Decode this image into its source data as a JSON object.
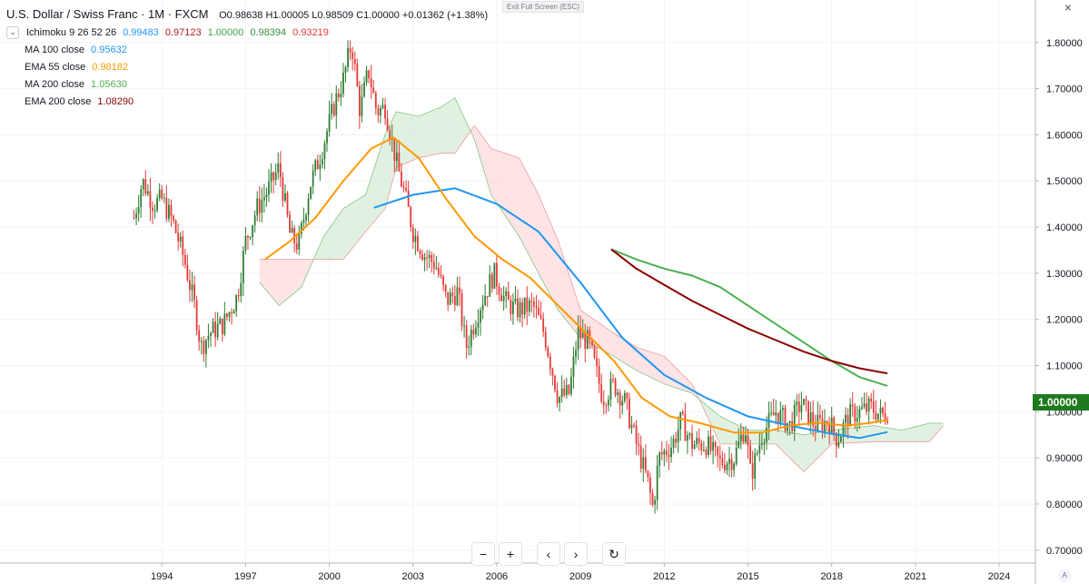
{
  "header": {
    "title": "U.S. Dollar / Swiss Franc · 1M · FXCM",
    "ohlc": "O0.98638  H1.00005  L0.98509  C1.00000  +0.01362 (+1.38%)",
    "exit_fullscreen": "Exit Full Screen (ESC)"
  },
  "indicators": {
    "ichimoku": {
      "name": "Ichimoku 9 26 52 26",
      "v1": "0.99483",
      "v2": "0.97123",
      "v3": "1.00000",
      "v4": "0.98394",
      "v5": "0.93219"
    },
    "ma100": {
      "name": "MA 100 close",
      "value": "0.95632"
    },
    "ema55": {
      "name": "EMA 55 close",
      "value": "0.98182"
    },
    "ma200": {
      "name": "MA 200 close",
      "value": "1.05630"
    },
    "ema200": {
      "name": "EMA 200 close",
      "value": "1.08290"
    }
  },
  "colors": {
    "up": "#26a69a",
    "up_candle": "#2e7d32",
    "down": "#e53935",
    "ma100": "#2196f3",
    "ema55": "#ff9800",
    "ma200": "#4caf50",
    "ema200": "#8b0000",
    "ichimoku_blue": "#2196f3",
    "ichimoku_red": "#b71c1c",
    "ichimoku_green": "#43a047",
    "ichimoku_v4": "#388e3c",
    "ichimoku_v5": "#e53935",
    "cloud_green": "#c8e6c9",
    "cloud_red": "#ffcdd2",
    "price_tag": "#1f7a1f",
    "grid": "#f0f3fa"
  },
  "price_tag": "1.00000",
  "nav": {
    "zoom_out": "−",
    "zoom_in": "+",
    "back": "‹",
    "forward": "›",
    "reset": "↻"
  },
  "chart_data": {
    "type": "candlestick",
    "x_ticks": [
      "1994",
      "1997",
      "2000",
      "2003",
      "2006",
      "2009",
      "2012",
      "2015",
      "2018",
      "2021",
      "2024"
    ],
    "x_tick_years": [
      1994,
      1997,
      2000,
      2003,
      2006,
      2009,
      2012,
      2015,
      2018,
      2021,
      2024
    ],
    "y_ticks": [
      "1.80000",
      "1.70000",
      "1.60000",
      "1.50000",
      "1.40000",
      "1.30000",
      "1.20000",
      "1.10000",
      "1.00000",
      "0.90000",
      "0.80000",
      "0.70000"
    ],
    "y_tick_values": [
      1.8,
      1.7,
      1.6,
      1.5,
      1.4,
      1.3,
      1.2,
      1.1,
      1.0,
      0.9,
      0.8,
      0.7
    ],
    "xlim": [
      1988.2,
      2025.3
    ],
    "ylim": [
      0.672,
      1.892
    ],
    "price_path": [
      [
        1993.0,
        1.42
      ],
      [
        1993.3,
        1.5
      ],
      [
        1993.7,
        1.45
      ],
      [
        1994.0,
        1.46
      ],
      [
        1994.4,
        1.41
      ],
      [
        1994.8,
        1.33
      ],
      [
        1995.2,
        1.22
      ],
      [
        1995.4,
        1.14
      ],
      [
        1995.7,
        1.17
      ],
      [
        1996.2,
        1.19
      ],
      [
        1996.7,
        1.25
      ],
      [
        1997.0,
        1.37
      ],
      [
        1997.4,
        1.44
      ],
      [
        1997.8,
        1.48
      ],
      [
        1998.2,
        1.53
      ],
      [
        1998.6,
        1.38
      ],
      [
        1998.9,
        1.36
      ],
      [
        1999.3,
        1.49
      ],
      [
        1999.7,
        1.56
      ],
      [
        2000.2,
        1.67
      ],
      [
        2000.5,
        1.72
      ],
      [
        2000.8,
        1.8
      ],
      [
        2001.1,
        1.65
      ],
      [
        2001.4,
        1.74
      ],
      [
        2001.7,
        1.65
      ],
      [
        2002.0,
        1.66
      ],
      [
        2002.4,
        1.54
      ],
      [
        2002.7,
        1.47
      ],
      [
        2003.0,
        1.39
      ],
      [
        2003.4,
        1.34
      ],
      [
        2003.8,
        1.32
      ],
      [
        2004.2,
        1.24
      ],
      [
        2004.6,
        1.26
      ],
      [
        2004.9,
        1.14
      ],
      [
        2005.4,
        1.23
      ],
      [
        2005.9,
        1.3
      ],
      [
        2006.3,
        1.24
      ],
      [
        2006.7,
        1.22
      ],
      [
        2007.3,
        1.23
      ],
      [
        2007.7,
        1.17
      ],
      [
        2008.2,
        1.03
      ],
      [
        2008.6,
        1.04
      ],
      [
        2008.9,
        1.17
      ],
      [
        2009.3,
        1.15
      ],
      [
        2009.8,
        1.03
      ],
      [
        2010.2,
        1.06
      ],
      [
        2010.6,
        1.02
      ],
      [
        2011.0,
        0.93
      ],
      [
        2011.4,
        0.85
      ],
      [
        2011.6,
        0.79
      ],
      [
        2011.8,
        0.9
      ],
      [
        2012.3,
        0.93
      ],
      [
        2012.6,
        0.98
      ],
      [
        2013.0,
        0.93
      ],
      [
        2013.5,
        0.93
      ],
      [
        2014.0,
        0.89
      ],
      [
        2014.5,
        0.9
      ],
      [
        2014.9,
        0.97
      ],
      [
        2015.1,
        0.86
      ],
      [
        2015.5,
        0.95
      ],
      [
        2016.0,
        1.0
      ],
      [
        2016.5,
        0.97
      ],
      [
        2016.9,
        1.02
      ],
      [
        2017.4,
        0.97
      ],
      [
        2017.9,
        0.98
      ],
      [
        2018.2,
        0.94
      ],
      [
        2018.6,
        0.99
      ],
      [
        2019.0,
        1.0
      ],
      [
        2019.4,
        1.01
      ],
      [
        2019.8,
        0.99
      ],
      [
        2020.0,
        1.0
      ]
    ],
    "series": [
      {
        "name": "MA 100 close",
        "color": "#2196f3",
        "points": [
          [
            2001.6,
            1.442
          ],
          [
            2003.0,
            1.47
          ],
          [
            2004.5,
            1.484
          ],
          [
            2006.0,
            1.45
          ],
          [
            2007.5,
            1.39
          ],
          [
            2009.0,
            1.28
          ],
          [
            2010.5,
            1.16
          ],
          [
            2012.0,
            1.08
          ],
          [
            2013.5,
            1.03
          ],
          [
            2015.0,
            0.99
          ],
          [
            2016.5,
            0.97
          ],
          [
            2018.0,
            0.952
          ],
          [
            2019.0,
            0.943
          ],
          [
            2020.0,
            0.956
          ]
        ]
      },
      {
        "name": "EMA 55 close",
        "color": "#ff9800",
        "points": [
          [
            1997.7,
            1.33
          ],
          [
            1998.6,
            1.37
          ],
          [
            1999.5,
            1.42
          ],
          [
            2000.5,
            1.5
          ],
          [
            2001.5,
            1.57
          ],
          [
            2002.3,
            1.594
          ],
          [
            2003.2,
            1.55
          ],
          [
            2004.2,
            1.46
          ],
          [
            2005.2,
            1.38
          ],
          [
            2006.2,
            1.33
          ],
          [
            2007.2,
            1.29
          ],
          [
            2008.2,
            1.23
          ],
          [
            2009.2,
            1.17
          ],
          [
            2010.2,
            1.11
          ],
          [
            2011.2,
            1.03
          ],
          [
            2012.2,
            0.99
          ],
          [
            2013.3,
            0.975
          ],
          [
            2014.5,
            0.955
          ],
          [
            2015.5,
            0.955
          ],
          [
            2016.5,
            0.97
          ],
          [
            2017.5,
            0.976
          ],
          [
            2018.5,
            0.97
          ],
          [
            2019.3,
            0.975
          ],
          [
            2020.0,
            0.982
          ]
        ]
      },
      {
        "name": "MA 200 close",
        "color": "#4caf50",
        "points": [
          [
            2010.1,
            1.352
          ],
          [
            2011.0,
            1.33
          ],
          [
            2012.0,
            1.31
          ],
          [
            2013.0,
            1.295
          ],
          [
            2014.0,
            1.27
          ],
          [
            2015.0,
            1.23
          ],
          [
            2016.0,
            1.19
          ],
          [
            2017.0,
            1.15
          ],
          [
            2018.0,
            1.11
          ],
          [
            2019.0,
            1.075
          ],
          [
            2020.0,
            1.056
          ]
        ]
      },
      {
        "name": "EMA 200 close",
        "color": "#8b0000",
        "points": [
          [
            2010.1,
            1.352
          ],
          [
            2011.0,
            1.31
          ],
          [
            2012.0,
            1.275
          ],
          [
            2013.0,
            1.24
          ],
          [
            2014.0,
            1.21
          ],
          [
            2015.0,
            1.18
          ],
          [
            2016.0,
            1.155
          ],
          [
            2017.0,
            1.13
          ],
          [
            2018.0,
            1.11
          ],
          [
            2019.0,
            1.094
          ],
          [
            2020.0,
            1.083
          ]
        ]
      }
    ],
    "cloud": {
      "span_a": [
        [
          1997.5,
          1.28
        ],
        [
          1998.2,
          1.23
        ],
        [
          1999.0,
          1.27
        ],
        [
          1999.8,
          1.38
        ],
        [
          2000.5,
          1.44
        ],
        [
          2001.3,
          1.47
        ],
        [
          2002.0,
          1.6
        ],
        [
          2002.4,
          1.65
        ],
        [
          2003.2,
          1.64
        ],
        [
          2004.0,
          1.66
        ],
        [
          2004.5,
          1.68
        ],
        [
          2005.2,
          1.59
        ],
        [
          2005.8,
          1.47
        ],
        [
          2006.8,
          1.38
        ],
        [
          2007.5,
          1.3
        ],
        [
          2008.2,
          1.22
        ],
        [
          2009.0,
          1.16
        ],
        [
          2010.2,
          1.12
        ],
        [
          2011.0,
          1.09
        ],
        [
          2012.0,
          1.06
        ],
        [
          2013.0,
          1.04
        ],
        [
          2014.0,
          0.99
        ],
        [
          2015.0,
          0.96
        ],
        [
          2016.0,
          0.96
        ],
        [
          2017.0,
          0.95
        ],
        [
          2018.0,
          0.96
        ],
        [
          2019.5,
          0.97
        ],
        [
          2020.5,
          0.96
        ],
        [
          2021.5,
          0.975
        ],
        [
          2022.0,
          0.975
        ]
      ],
      "span_b": [
        [
          1997.5,
          1.33
        ],
        [
          1998.2,
          1.33
        ],
        [
          1999.0,
          1.33
        ],
        [
          1999.8,
          1.33
        ],
        [
          2000.5,
          1.33
        ],
        [
          2001.3,
          1.39
        ],
        [
          2002.0,
          1.44
        ],
        [
          2002.4,
          1.53
        ],
        [
          2003.2,
          1.55
        ],
        [
          2004.0,
          1.56
        ],
        [
          2004.5,
          1.56
        ],
        [
          2005.2,
          1.62
        ],
        [
          2005.8,
          1.57
        ],
        [
          2006.8,
          1.55
        ],
        [
          2007.5,
          1.47
        ],
        [
          2008.2,
          1.37
        ],
        [
          2009.0,
          1.22
        ],
        [
          2010.2,
          1.17
        ],
        [
          2011.0,
          1.14
        ],
        [
          2012.0,
          1.12
        ],
        [
          2013.0,
          1.06
        ],
        [
          2014.0,
          0.93
        ],
        [
          2015.0,
          0.93
        ],
        [
          2016.0,
          0.93
        ],
        [
          2017.0,
          0.87
        ],
        [
          2018.0,
          0.93
        ],
        [
          2019.5,
          0.935
        ],
        [
          2020.5,
          0.935
        ],
        [
          2021.5,
          0.935
        ],
        [
          2022.0,
          0.97
        ]
      ]
    }
  }
}
